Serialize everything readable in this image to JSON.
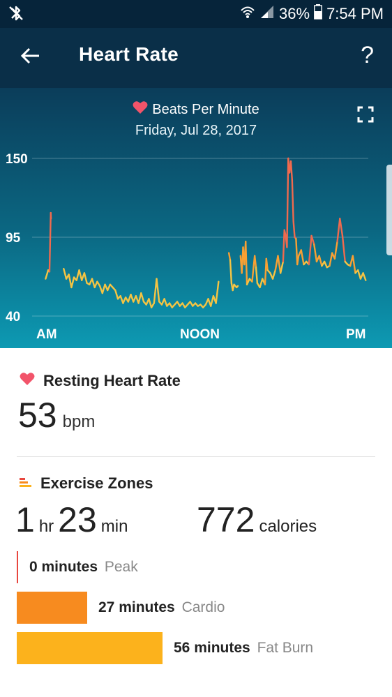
{
  "status_bar": {
    "left_icon": "bluetooth-off-icon",
    "battery": "36%",
    "time": "7:54 PM"
  },
  "app_bar": {
    "title": "Heart Rate",
    "help_label": "?"
  },
  "chart_header": {
    "title": "Beats Per Minute",
    "date": "Friday, Jul 28, 2017"
  },
  "chart_data": {
    "type": "line",
    "title": "Beats Per Minute",
    "y_ticks": [
      "150",
      "95",
      "40"
    ],
    "ylim": [
      40,
      150
    ],
    "x_ticks": [
      "AM",
      "NOON",
      "PM"
    ],
    "grid": true,
    "colors": {
      "low": "#f5c443",
      "mid": "#f9a033",
      "high": "#f06a4e"
    },
    "segments": [
      [
        [
          0.02,
          66
        ],
        [
          0.03,
          72
        ],
        [
          0.035,
          71
        ],
        [
          0.04,
          112
        ],
        [
          0.041,
          108
        ]
      ],
      [
        [
          0.09,
          73
        ],
        [
          0.1,
          66
        ],
        [
          0.11,
          69
        ],
        [
          0.12,
          60
        ],
        [
          0.13,
          67
        ],
        [
          0.14,
          65
        ],
        [
          0.15,
          72
        ],
        [
          0.16,
          65
        ],
        [
          0.17,
          70
        ],
        [
          0.18,
          63
        ],
        [
          0.19,
          62
        ],
        [
          0.2,
          66
        ],
        [
          0.21,
          60
        ],
        [
          0.22,
          64
        ],
        [
          0.23,
          61
        ],
        [
          0.24,
          56
        ],
        [
          0.25,
          62
        ],
        [
          0.26,
          58
        ],
        [
          0.27,
          62
        ],
        [
          0.28,
          60
        ],
        [
          0.29,
          58
        ],
        [
          0.3,
          52
        ],
        [
          0.31,
          54
        ],
        [
          0.32,
          49
        ],
        [
          0.33,
          53
        ],
        [
          0.34,
          50
        ],
        [
          0.35,
          55
        ],
        [
          0.36,
          50
        ],
        [
          0.37,
          54
        ],
        [
          0.38,
          49
        ],
        [
          0.39,
          56
        ],
        [
          0.4,
          50
        ],
        [
          0.41,
          48
        ],
        [
          0.42,
          52
        ],
        [
          0.43,
          46
        ],
        [
          0.44,
          49
        ],
        [
          0.45,
          66
        ],
        [
          0.46,
          50
        ],
        [
          0.47,
          48
        ],
        [
          0.48,
          52
        ],
        [
          0.49,
          47
        ],
        [
          0.5,
          49
        ],
        [
          0.51,
          46
        ],
        [
          0.52,
          48
        ],
        [
          0.53,
          50
        ],
        [
          0.54,
          47
        ],
        [
          0.55,
          49
        ],
        [
          0.56,
          46
        ],
        [
          0.57,
          48
        ],
        [
          0.58,
          50
        ],
        [
          0.59,
          47
        ],
        [
          0.6,
          49
        ],
        [
          0.61,
          47
        ],
        [
          0.62,
          48
        ],
        [
          0.63,
          46
        ],
        [
          0.64,
          48
        ],
        [
          0.65,
          52
        ],
        [
          0.66,
          47
        ],
        [
          0.67,
          54
        ],
        [
          0.68,
          49
        ],
        [
          0.69,
          64
        ]
      ],
      [
        [
          0.73,
          84
        ],
        [
          0.735,
          79
        ],
        [
          0.74,
          63
        ],
        [
          0.745,
          58
        ],
        [
          0.75,
          62
        ],
        [
          0.76,
          60
        ],
        [
          0.765,
          61
        ]
      ],
      [
        [
          0.775,
          82
        ],
        [
          0.78,
          70
        ],
        [
          0.785,
          88
        ],
        [
          0.79,
          76
        ],
        [
          0.795,
          92
        ],
        [
          0.8,
          62
        ],
        [
          0.81,
          66
        ],
        [
          0.82,
          64
        ],
        [
          0.83,
          82
        ],
        [
          0.835,
          74
        ],
        [
          0.84,
          63
        ],
        [
          0.85,
          60
        ],
        [
          0.86,
          66
        ],
        [
          0.87,
          62
        ],
        [
          0.875,
          80
        ],
        [
          0.88,
          72
        ],
        [
          0.89,
          70
        ],
        [
          0.9,
          66
        ],
        [
          0.91,
          72
        ],
        [
          0.92,
          82
        ],
        [
          0.93,
          70
        ],
        [
          0.94,
          78
        ],
        [
          0.945,
          100
        ],
        [
          0.95,
          96
        ],
        [
          0.955,
          88
        ],
        [
          0.96,
          150
        ],
        [
          0.965,
          140
        ],
        [
          0.97,
          148
        ],
        [
          0.975,
          135
        ],
        [
          0.98,
          106
        ],
        [
          0.985,
          95
        ],
        [
          0.99,
          94
        ],
        [
          0.995,
          76
        ],
        [
          1.0,
          82
        ],
        [
          1.01,
          86
        ],
        [
          1.02,
          76
        ],
        [
          1.03,
          78
        ],
        [
          1.04,
          76
        ],
        [
          1.05,
          96
        ],
        [
          1.06,
          90
        ],
        [
          1.07,
          78
        ],
        [
          1.08,
          82
        ],
        [
          1.09,
          75
        ],
        [
          1.1,
          78
        ],
        [
          1.11,
          74
        ],
        [
          1.12,
          75
        ],
        [
          1.13,
          84
        ],
        [
          1.14,
          80
        ],
        [
          1.15,
          92
        ],
        [
          1.16,
          108
        ],
        [
          1.17,
          96
        ],
        [
          1.18,
          78
        ],
        [
          1.19,
          76
        ],
        [
          1.2,
          75
        ],
        [
          1.21,
          82
        ],
        [
          1.22,
          70
        ],
        [
          1.23,
          72
        ],
        [
          1.24,
          66
        ],
        [
          1.25,
          70
        ],
        [
          1.26,
          65
        ]
      ]
    ]
  },
  "resting": {
    "title": "Resting Heart Rate",
    "value": "53",
    "unit": "bpm"
  },
  "exercise": {
    "title": "Exercise Zones",
    "hours": "1",
    "hours_unit": "hr",
    "minutes": "23",
    "minutes_unit": "min",
    "calories": "772",
    "calories_unit": "calories",
    "zones": [
      {
        "minutes": "0 minutes",
        "name": "Peak",
        "value_min": 0,
        "color": "#e8473f"
      },
      {
        "minutes": "27 minutes",
        "name": "Cardio",
        "value_min": 27,
        "color": "#f78b1f"
      },
      {
        "minutes": "56 minutes",
        "name": "Fat Burn",
        "value_min": 56,
        "color": "#fcb21c"
      }
    ]
  }
}
